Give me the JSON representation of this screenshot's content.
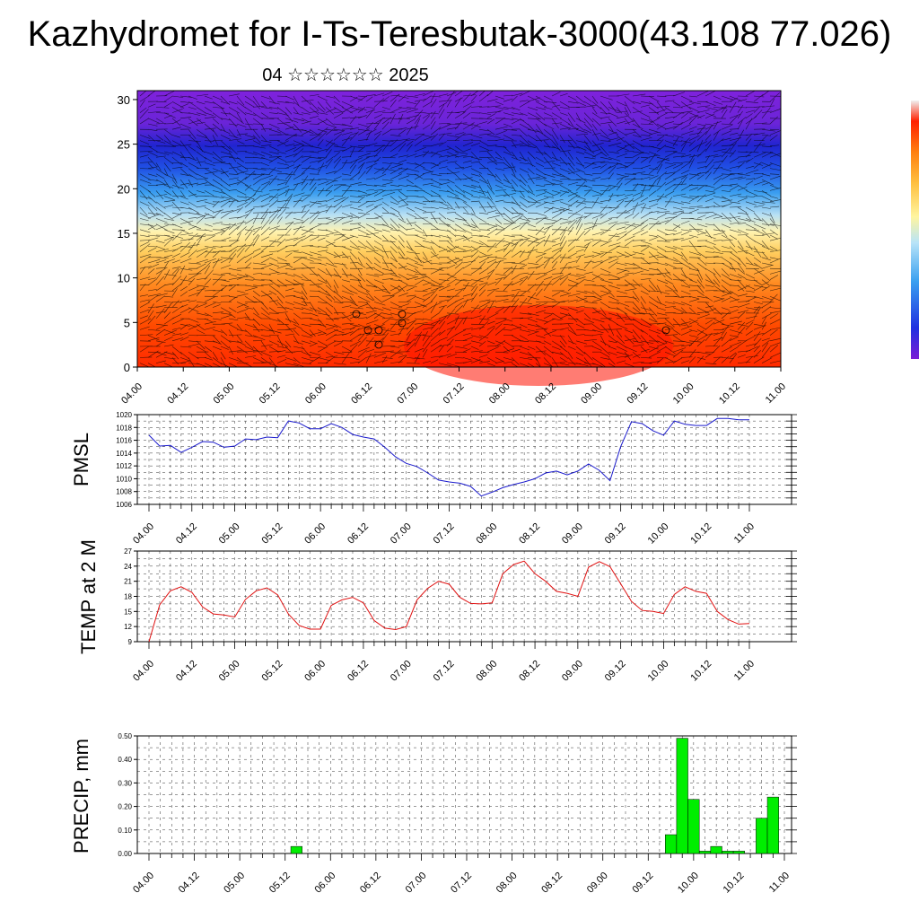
{
  "title": "Kazhydromet for I-Ts-Teresbutak-3000(43.108 77.026)",
  "subtitle": "04 ☆☆☆☆☆☆ 2025",
  "colors": {
    "pmsl_line": "#1a1acc",
    "temp_line": "#e01010",
    "precip_bar": "#00ee00",
    "colorbar": [
      "#7a1fd6",
      "#2030e0",
      "#3aa0f0",
      "#b8e4f8",
      "#fff5a0",
      "#ffc040",
      "#ff8010",
      "#ff2000",
      "#e80000"
    ]
  },
  "chart_data": [
    {
      "type": "heatmap",
      "name": "vertical cross-section with wind barbs",
      "x_tick_labels": [
        "04.00",
        "04.12",
        "05.00",
        "05.12",
        "06.00",
        "06.12",
        "07.00",
        "07.12",
        "08.00",
        "08.12",
        "09.00",
        "09.12",
        "10.00",
        "10.12",
        "11.00"
      ],
      "y_tick_labels": [
        "0",
        "5",
        "10",
        "15",
        "20",
        "25",
        "30"
      ],
      "ylim": [
        0,
        31
      ],
      "color_bands_by_height": [
        {
          "from": 0,
          "to": 7,
          "color": "#ff2a00"
        },
        {
          "from": 7,
          "to": 12,
          "color": "#ff7a10"
        },
        {
          "from": 12,
          "to": 15.5,
          "color": "#ffd36a"
        },
        {
          "from": 15.5,
          "to": 19,
          "color": "#a7d8f0"
        },
        {
          "from": 19,
          "to": 22.5,
          "color": "#2b6ee8"
        },
        {
          "from": 22.5,
          "to": 25.5,
          "color": "#1e2fd8"
        },
        {
          "from": 25.5,
          "to": 31,
          "color": "#7a22d8"
        }
      ],
      "grid": false
    },
    {
      "type": "line",
      "ylabel": "PMSL",
      "ylim": [
        1006,
        1020
      ],
      "y_tick_labels": [
        "1006",
        "1008",
        "1010",
        "1012",
        "1014",
        "1016",
        "1018",
        "1020"
      ],
      "x_tick_labels": [
        "04.00",
        "04.12",
        "05.00",
        "05.12",
        "06.00",
        "06.12",
        "07.00",
        "07.12",
        "08.00",
        "08.12",
        "09.00",
        "09.12",
        "10.00",
        "10.12",
        "11.00"
      ],
      "x_step_hours": 3,
      "values": [
        1016.8,
        1015.1,
        1015.2,
        1014.1,
        1014.9,
        1015.8,
        1015.7,
        1014.9,
        1015.1,
        1016.2,
        1016.1,
        1016.5,
        1016.4,
        1019.0,
        1018.7,
        1017.8,
        1017.8,
        1018.6,
        1018.0,
        1016.9,
        1016.5,
        1016.2,
        1014.9,
        1013.4,
        1012.4,
        1011.9,
        1010.9,
        1009.8,
        1009.5,
        1009.3,
        1008.8,
        1007.3,
        1007.9,
        1008.6,
        1009.1,
        1009.5,
        1010.0,
        1010.9,
        1011.2,
        1010.6,
        1011.2,
        1012.3,
        1011.3,
        1009.7,
        1015.0,
        1018.9,
        1018.6,
        1017.5,
        1016.8,
        1019.0,
        1018.5,
        1018.3,
        1018.3,
        1019.4,
        1019.4,
        1019.2,
        1019.2
      ],
      "grid": true
    },
    {
      "type": "line",
      "ylabel": "TEMP at 2 M",
      "ylim": [
        9,
        27
      ],
      "y_tick_labels": [
        "9",
        "12",
        "15",
        "18",
        "21",
        "24",
        "27"
      ],
      "x_tick_labels": [
        "04.00",
        "04.12",
        "05.00",
        "05.12",
        "06.00",
        "06.12",
        "07.00",
        "07.12",
        "08.00",
        "08.12",
        "09.00",
        "09.12",
        "10.00",
        "10.12",
        "11.00"
      ],
      "x_step_hours": 3,
      "values": [
        9.0,
        16.3,
        19.1,
        19.9,
        18.8,
        15.9,
        14.5,
        14.3,
        13.9,
        17.4,
        19.1,
        19.7,
        18.3,
        14.5,
        12.2,
        11.5,
        11.5,
        16.2,
        17.3,
        17.8,
        16.7,
        13.2,
        11.7,
        11.4,
        12.0,
        17.3,
        19.6,
        21.0,
        20.4,
        17.8,
        16.6,
        16.5,
        16.7,
        22.5,
        24.3,
        25.0,
        22.5,
        21.0,
        19.0,
        18.6,
        18.0,
        23.8,
        24.9,
        23.9,
        20.5,
        17.0,
        15.2,
        15.0,
        14.6,
        18.4,
        19.9,
        19.0,
        18.6,
        15.0,
        13.4,
        12.5,
        12.6
      ],
      "grid": true
    },
    {
      "type": "bar",
      "ylabel": "PRECIP, mm",
      "ylim": [
        0,
        0.5
      ],
      "y_tick_labels": [
        "0.00",
        "0.10",
        "0.20",
        "0.30",
        "0.40",
        "0.50"
      ],
      "x_tick_labels": [
        "04.00",
        "04.12",
        "05.00",
        "05.12",
        "06.00",
        "06.12",
        "07.00",
        "07.12",
        "08.00",
        "08.12",
        "09.00",
        "09.12",
        "10.00",
        "10.12",
        "11.00"
      ],
      "x_step_hours": 3,
      "values": [
        0,
        0,
        0,
        0,
        0,
        0,
        0,
        0,
        0,
        0,
        0,
        0,
        0,
        0.03,
        0,
        0,
        0,
        0,
        0,
        0,
        0,
        0,
        0,
        0,
        0,
        0,
        0,
        0,
        0,
        0,
        0,
        0,
        0,
        0,
        0,
        0,
        0,
        0,
        0,
        0,
        0,
        0,
        0,
        0,
        0,
        0,
        0.08,
        0.49,
        0.23,
        0.01,
        0.03,
        0.01,
        0.01,
        0,
        0.15,
        0.24,
        0
      ],
      "grid": true
    }
  ]
}
